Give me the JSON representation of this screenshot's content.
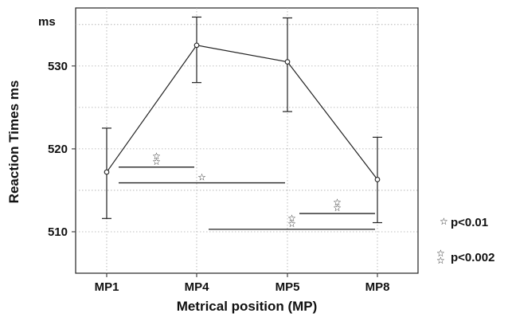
{
  "chart_data": {
    "type": "line",
    "xlabel": "Metrical position (MP)",
    "ylabel": "Reaction Times ms",
    "y_unit_label": "ms",
    "categories": [
      "MP1",
      "MP4",
      "MP5",
      "MP8"
    ],
    "ylim": [
      505,
      537
    ],
    "yticks": [
      510,
      520,
      530
    ],
    "grid": true,
    "series": [
      {
        "values": [
          517.2,
          532.5,
          530.5,
          516.3
        ],
        "error_low": [
          511.6,
          528.0,
          524.5,
          511.1
        ],
        "error_high": [
          522.5,
          535.9,
          535.8,
          521.4
        ]
      }
    ],
    "significance_bars": [
      {
        "from": "MP1",
        "to": "MP4",
        "y": 517.8,
        "stars": 2
      },
      {
        "from": "MP1",
        "to": "MP5",
        "y": 515.9,
        "stars": 1
      },
      {
        "from": "MP5",
        "to": "MP8",
        "y": 512.2,
        "stars": 2
      },
      {
        "from": "MP4",
        "to": "MP8",
        "y": 510.3,
        "stars": 2
      }
    ],
    "legend": {
      "placement": "right",
      "entries": [
        {
          "symbol": "☆",
          "stars": 1,
          "label": "p<0.01"
        },
        {
          "symbol": "☆",
          "stars": 2,
          "label": "p<0.002"
        }
      ]
    }
  }
}
